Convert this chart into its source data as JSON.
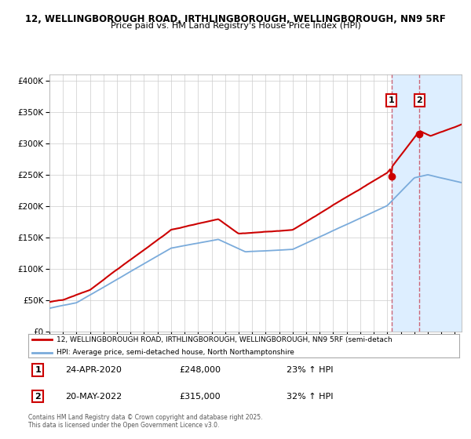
{
  "title1": "12, WELLINGBOROUGH ROAD, IRTHLINGBOROUGH, WELLINGBOROUGH, NN9 5RF",
  "title2": "Price paid vs. HM Land Registry's House Price Index (HPI)",
  "legend_line1": "12, WELLINGBOROUGH ROAD, IRTHLINGBOROUGH, WELLINGBOROUGH, NN9 5RF (semi-detach",
  "legend_line2": "HPI: Average price, semi-detached house, North Northamptonshire",
  "sale1_date": "24-APR-2020",
  "sale1_price": 248000,
  "sale1_pct": "23% ↑ HPI",
  "sale2_date": "20-MAY-2022",
  "sale2_price": 315000,
  "sale2_pct": "32% ↑ HPI",
  "footnote": "Contains HM Land Registry data © Crown copyright and database right 2025.\nThis data is licensed under the Open Government Licence v3.0.",
  "red_color": "#cc0000",
  "blue_color": "#7aabdb",
  "shade_color": "#ddeeff",
  "dashed_color": "#cc6677",
  "ylim_max": 410000,
  "yticks": [
    0,
    50000,
    100000,
    150000,
    200000,
    250000,
    300000,
    350000,
    400000
  ],
  "sale1_year": 2020.31,
  "sale2_year": 2022.38,
  "xmin": 1995,
  "xmax": 2025.5
}
